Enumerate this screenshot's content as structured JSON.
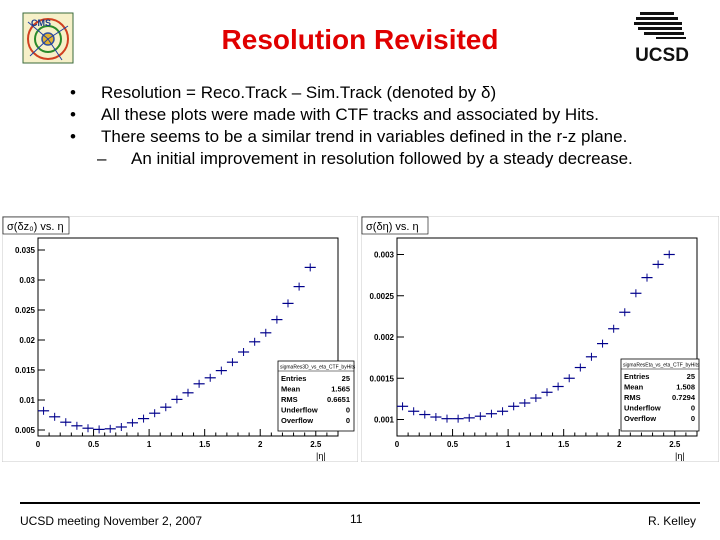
{
  "slide": {
    "title": "Resolution Revisited",
    "bullets": [
      "Resolution = Reco.Track – Sim.Track (denoted by δ)",
      "All these plots were made with CTF tracks and associated by Hits.",
      "There seems to be a similar trend in variables defined in the r-z plane."
    ],
    "bullet_marker": "•",
    "sub_marker": "–",
    "sub_bullet": "An initial improvement in resolution followed by a steady decrease."
  },
  "footer": {
    "left": "UCSD meeting November 2, 2007",
    "page": "11",
    "right": "R. Kelley"
  },
  "logos": {
    "right_text": "UCSD"
  },
  "chart_data": [
    {
      "type": "scatter",
      "title": "σ(δz₀) vs. η",
      "xlabel": "|η|",
      "ylabel": "",
      "xlim": [
        0,
        2.7
      ],
      "ylim": [
        0.004,
        0.037
      ],
      "xticks": [
        "0",
        "0.5",
        "1",
        "1.5",
        "2",
        "2.5"
      ],
      "xtick_values": [
        0,
        0.5,
        1,
        1.5,
        2,
        2.5
      ],
      "yticks": [
        "0.005",
        "0.01",
        "0.015",
        "0.02",
        "0.025",
        "0.03",
        "0.035"
      ],
      "ytick_values": [
        0.005,
        0.01,
        0.015,
        0.02,
        0.025,
        0.03,
        0.035
      ],
      "grid": false,
      "marker_color": "#00008b",
      "x": [
        0.05,
        0.15,
        0.25,
        0.35,
        0.45,
        0.55,
        0.65,
        0.75,
        0.85,
        0.95,
        1.05,
        1.15,
        1.25,
        1.35,
        1.45,
        1.55,
        1.65,
        1.75,
        1.85,
        1.95,
        2.05,
        2.15,
        2.25,
        2.35,
        2.45
      ],
      "y": [
        0.0082,
        0.0072,
        0.0063,
        0.0057,
        0.0053,
        0.0051,
        0.0052,
        0.0055,
        0.0062,
        0.0069,
        0.0078,
        0.0088,
        0.0101,
        0.0112,
        0.0127,
        0.0137,
        0.0149,
        0.0163,
        0.018,
        0.0197,
        0.0212,
        0.0234,
        0.0261,
        0.0289,
        0.0321
      ],
      "stats": {
        "name": "sigmaRes3D_vs_eta_CTF_byHits",
        "labels": [
          "Entries",
          "Mean",
          "RMS",
          "Underflow",
          "Overflow"
        ],
        "values": [
          "25",
          "1.565",
          "0.6651",
          "0",
          "0"
        ]
      }
    },
    {
      "type": "scatter",
      "title": "σ(δη) vs. η",
      "xlabel": "|η|",
      "ylabel": "",
      "xlim": [
        0,
        2.7
      ],
      "ylim": [
        0.0008,
        0.0032
      ],
      "xticks": [
        "0",
        "0.5",
        "1",
        "1.5",
        "2",
        "2.5"
      ],
      "xtick_values": [
        0,
        0.5,
        1,
        1.5,
        2,
        2.5
      ],
      "yticks": [
        "0.001",
        "0.0015",
        "0.002",
        "0.0025",
        "0.003"
      ],
      "ytick_values": [
        0.001,
        0.0015,
        0.002,
        0.0025,
        0.003
      ],
      "grid": false,
      "marker_color": "#00008b",
      "x": [
        0.05,
        0.15,
        0.25,
        0.35,
        0.45,
        0.55,
        0.65,
        0.75,
        0.85,
        0.95,
        1.05,
        1.15,
        1.25,
        1.35,
        1.45,
        1.55,
        1.65,
        1.75,
        1.85,
        1.95,
        2.05,
        2.15,
        2.25,
        2.35,
        2.45
      ],
      "y": [
        0.00116,
        0.0011,
        0.00106,
        0.00103,
        0.00101,
        0.00101,
        0.00102,
        0.00104,
        0.00107,
        0.0011,
        0.00116,
        0.0012,
        0.00126,
        0.00133,
        0.0014,
        0.0015,
        0.00163,
        0.00176,
        0.00192,
        0.0021,
        0.0023,
        0.00253,
        0.00272,
        0.00288,
        0.003
      ],
      "stats": {
        "name": "sigmaResEta_vs_eta_CTF_byHits",
        "labels": [
          "Entries",
          "Mean",
          "RMS",
          "Underflow",
          "Overflow"
        ],
        "values": [
          "25",
          "1.508",
          "0.7294",
          "0",
          "0"
        ]
      }
    }
  ]
}
